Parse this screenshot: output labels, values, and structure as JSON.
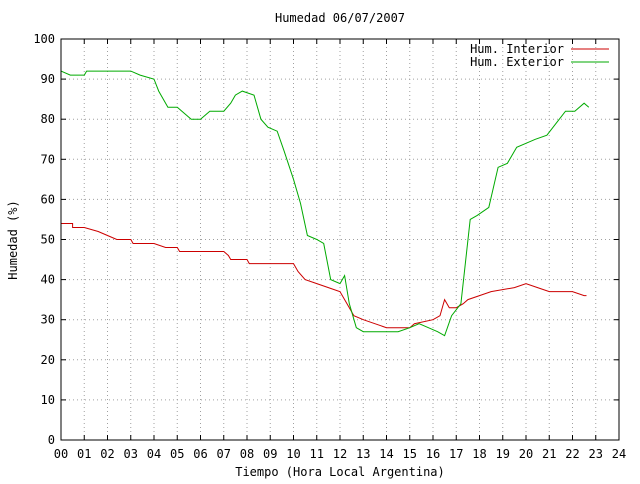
{
  "chart_data": {
    "type": "line",
    "title": "Humedad 06/07/2007",
    "xlabel": "Tiempo (Hora Local Argentina)",
    "ylabel": "Humedad (%)",
    "xlim": [
      0,
      24
    ],
    "ylim": [
      0,
      100
    ],
    "x_ticks": [
      "00",
      "01",
      "02",
      "03",
      "04",
      "05",
      "06",
      "07",
      "08",
      "09",
      "10",
      "11",
      "12",
      "13",
      "14",
      "15",
      "16",
      "17",
      "18",
      "19",
      "20",
      "21",
      "22",
      "23",
      "24"
    ],
    "y_ticks": [
      "0",
      "10",
      "20",
      "30",
      "40",
      "50",
      "60",
      "70",
      "80",
      "90",
      "100"
    ],
    "grid": true,
    "legend_position": "top-right",
    "series": [
      {
        "name": "Hum. Interior",
        "color": "#cc0000",
        "points": [
          [
            0.0,
            54
          ],
          [
            0.5,
            54
          ],
          [
            0.5,
            53
          ],
          [
            1.0,
            53
          ],
          [
            1.6,
            52
          ],
          [
            2.0,
            51
          ],
          [
            2.4,
            50
          ],
          [
            3.0,
            50
          ],
          [
            3.1,
            49
          ],
          [
            4.0,
            49
          ],
          [
            4.5,
            48
          ],
          [
            5.0,
            48
          ],
          [
            5.1,
            47
          ],
          [
            6.0,
            47
          ],
          [
            7.0,
            47
          ],
          [
            7.2,
            46
          ],
          [
            7.3,
            45
          ],
          [
            8.0,
            45
          ],
          [
            8.1,
            44
          ],
          [
            10.0,
            44
          ],
          [
            10.2,
            42
          ],
          [
            10.5,
            40
          ],
          [
            11.0,
            39
          ],
          [
            11.5,
            38
          ],
          [
            12.0,
            37
          ],
          [
            12.3,
            34
          ],
          [
            12.6,
            31
          ],
          [
            13.0,
            30
          ],
          [
            13.5,
            29
          ],
          [
            14.0,
            28
          ],
          [
            15.0,
            28
          ],
          [
            15.2,
            29
          ],
          [
            16.0,
            30
          ],
          [
            16.3,
            31
          ],
          [
            16.5,
            35
          ],
          [
            16.7,
            33
          ],
          [
            17.0,
            33
          ],
          [
            17.3,
            34
          ],
          [
            17.5,
            35
          ],
          [
            18.0,
            36
          ],
          [
            18.5,
            37
          ],
          [
            19.5,
            38
          ],
          [
            20.0,
            39
          ],
          [
            20.5,
            38
          ],
          [
            21.0,
            37
          ],
          [
            22.0,
            37
          ],
          [
            22.5,
            36
          ],
          [
            22.6,
            36
          ]
        ]
      },
      {
        "name": "Hum. Exterior",
        "color": "#00aa00",
        "points": [
          [
            0.0,
            92
          ],
          [
            0.4,
            91
          ],
          [
            1.0,
            91
          ],
          [
            1.1,
            92
          ],
          [
            3.0,
            92
          ],
          [
            3.4,
            91
          ],
          [
            4.0,
            90
          ],
          [
            4.2,
            87
          ],
          [
            4.6,
            83
          ],
          [
            5.0,
            83
          ],
          [
            5.2,
            82
          ],
          [
            5.6,
            80
          ],
          [
            6.0,
            80
          ],
          [
            6.4,
            82
          ],
          [
            7.0,
            82
          ],
          [
            7.3,
            84
          ],
          [
            7.5,
            86
          ],
          [
            7.8,
            87
          ],
          [
            8.3,
            86
          ],
          [
            8.6,
            80
          ],
          [
            8.9,
            78
          ],
          [
            9.3,
            77
          ],
          [
            9.6,
            72
          ],
          [
            10.0,
            65
          ],
          [
            10.3,
            59
          ],
          [
            10.6,
            51
          ],
          [
            11.0,
            50
          ],
          [
            11.3,
            49
          ],
          [
            11.6,
            40
          ],
          [
            12.0,
            39
          ],
          [
            12.2,
            41
          ],
          [
            12.4,
            34
          ],
          [
            12.7,
            28
          ],
          [
            13.0,
            27
          ],
          [
            13.5,
            27
          ],
          [
            14.0,
            27
          ],
          [
            14.5,
            27
          ],
          [
            15.0,
            28
          ],
          [
            15.4,
            29
          ],
          [
            15.8,
            28
          ],
          [
            16.2,
            27
          ],
          [
            16.5,
            26
          ],
          [
            16.8,
            31
          ],
          [
            17.2,
            34
          ],
          [
            17.6,
            55
          ],
          [
            17.9,
            56
          ],
          [
            18.4,
            58
          ],
          [
            18.8,
            68
          ],
          [
            19.2,
            69
          ],
          [
            19.6,
            73
          ],
          [
            20.0,
            74
          ],
          [
            20.4,
            75
          ],
          [
            20.9,
            76
          ],
          [
            21.3,
            79
          ],
          [
            21.7,
            82
          ],
          [
            22.1,
            82
          ],
          [
            22.5,
            84
          ],
          [
            22.7,
            83
          ]
        ]
      }
    ]
  }
}
